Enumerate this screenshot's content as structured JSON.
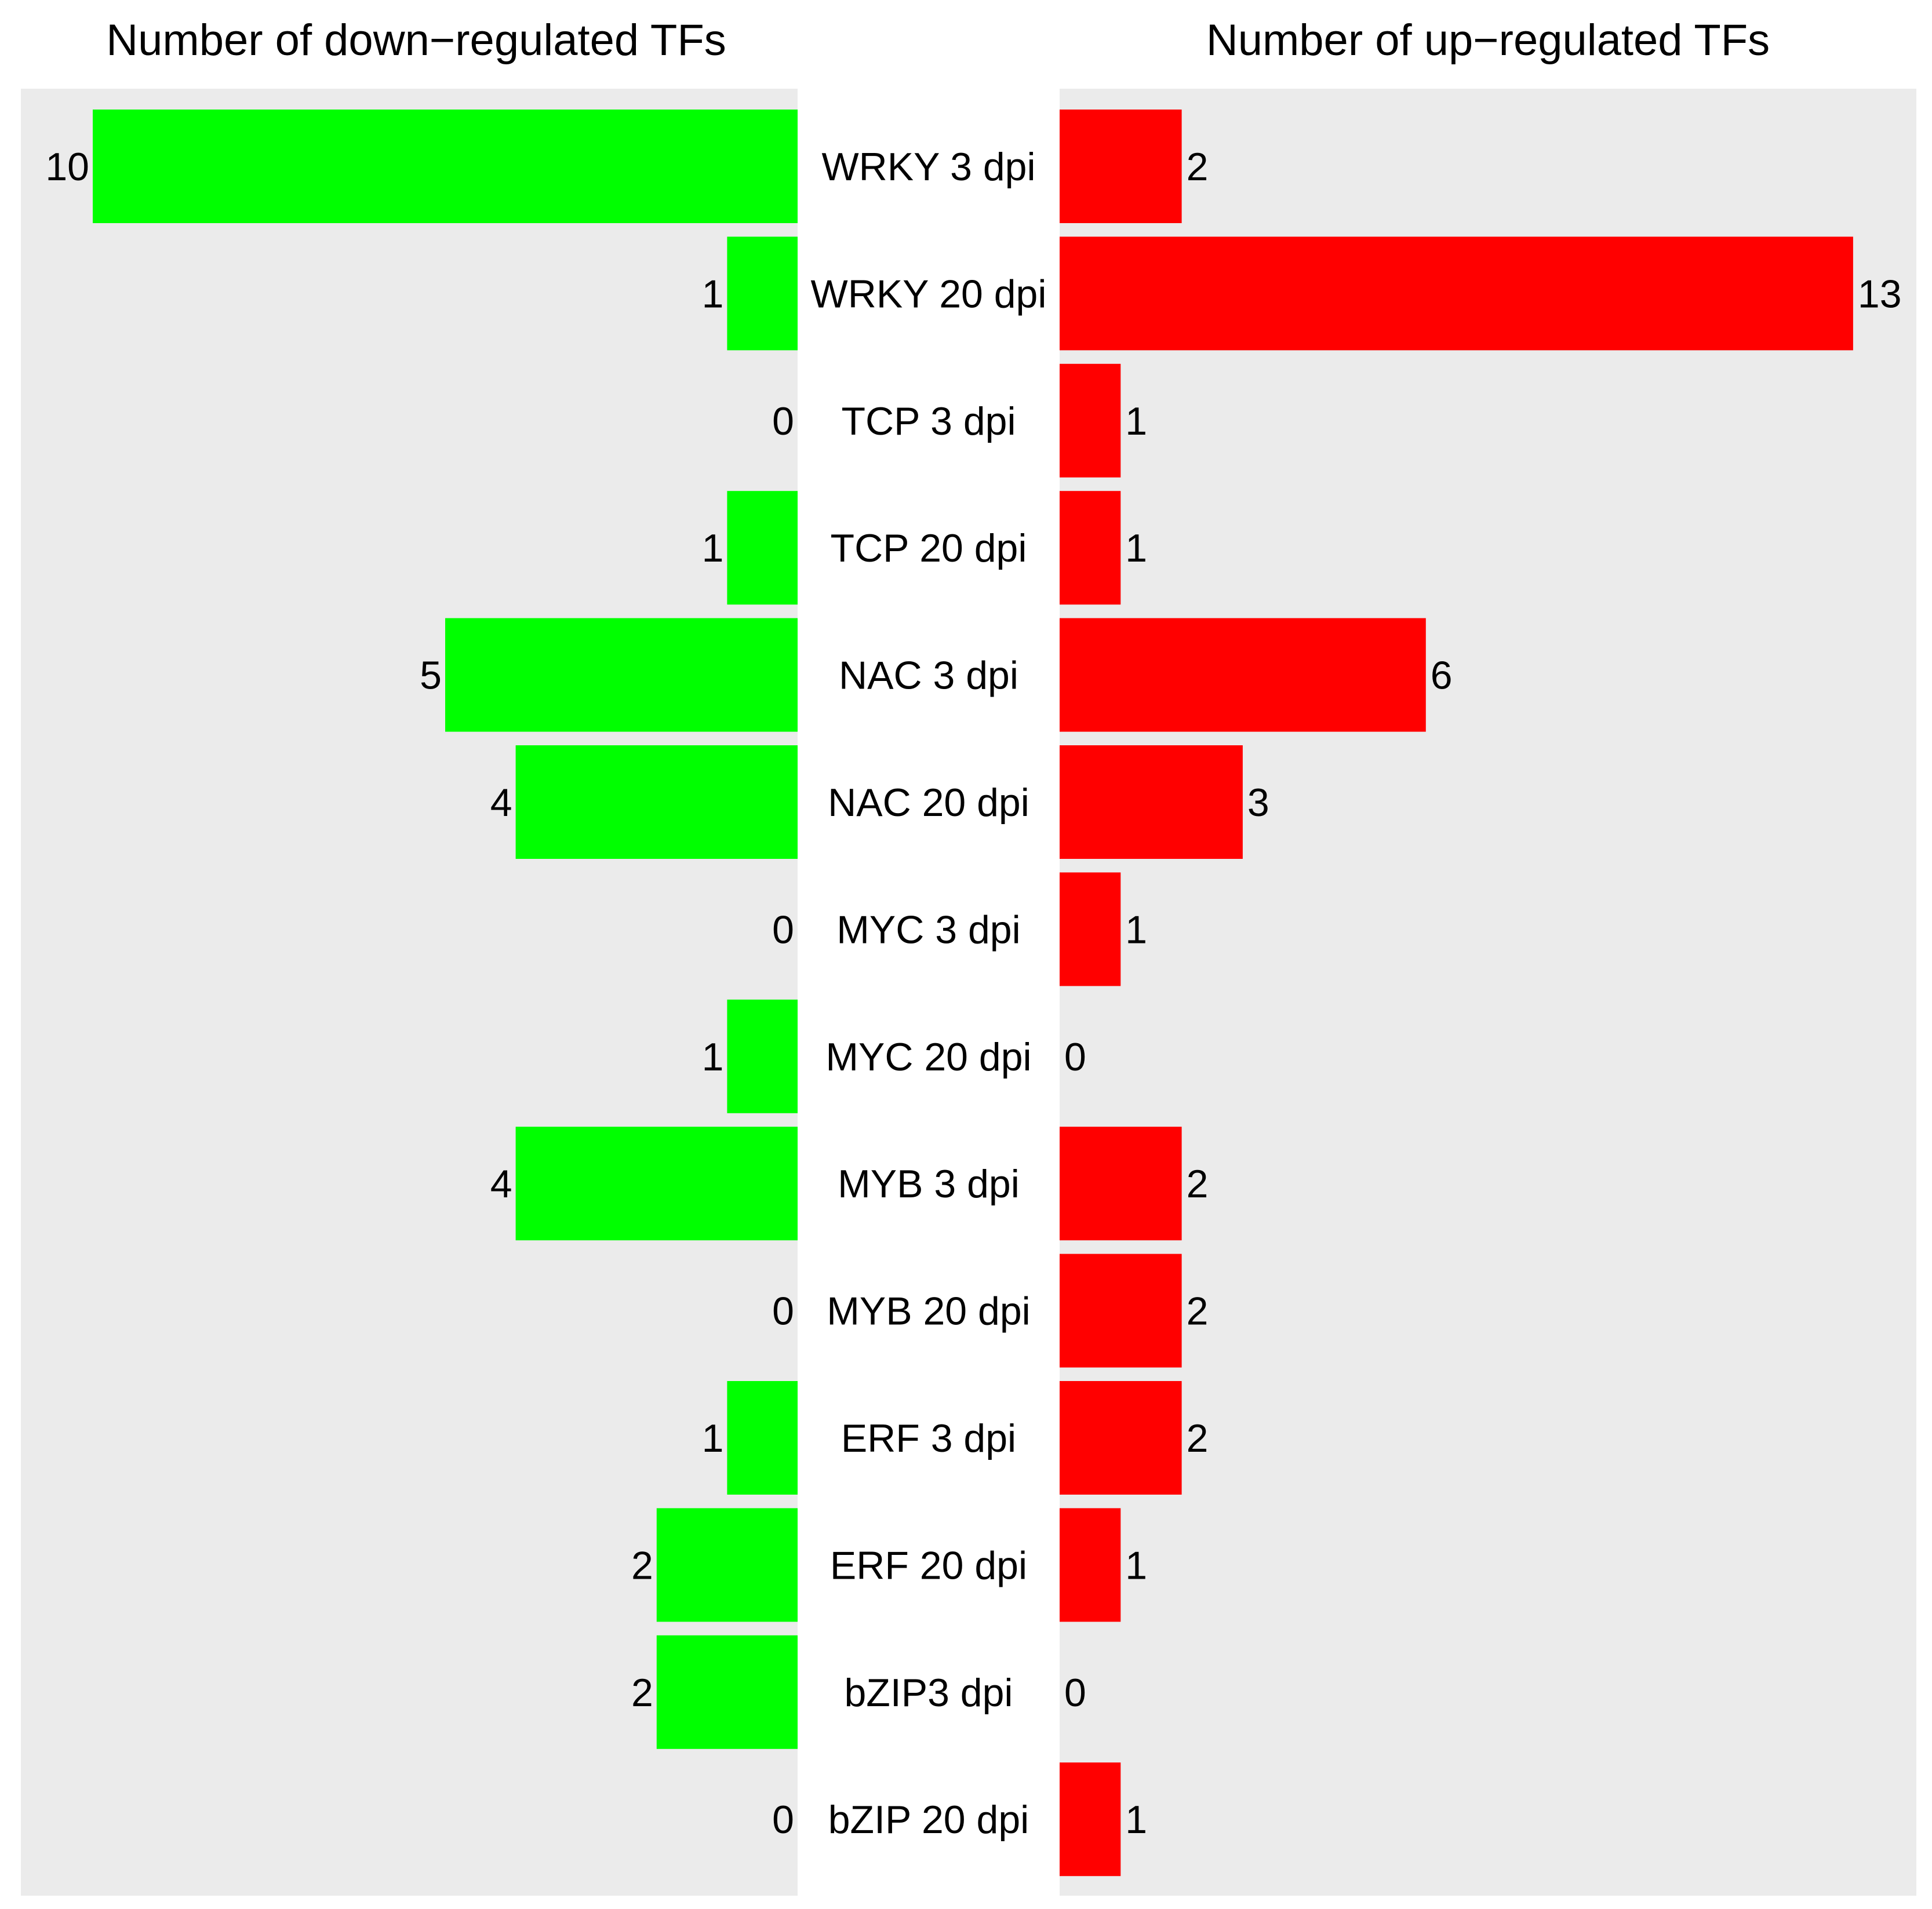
{
  "chart_data": {
    "type": "bar",
    "layout": "back-to-back horizontal",
    "categories": [
      "WRKY 3 dpi",
      "WRKY 20 dpi",
      "TCP 3 dpi",
      "TCP 20 dpi",
      "NAC 3 dpi",
      "NAC 20 dpi",
      "MYC 3 dpi",
      "MYC 20 dpi",
      "MYB 3 dpi",
      "MYB 20 dpi",
      "ERF 3 dpi",
      "ERF 20 dpi",
      "bZIP3 dpi",
      "bZIP 20 dpi"
    ],
    "left_panel": {
      "title": "Number of down−regulated TFs",
      "color": "#00ff00",
      "values": [
        10,
        1,
        0,
        1,
        5,
        4,
        0,
        1,
        4,
        0,
        1,
        2,
        2,
        0
      ]
    },
    "right_panel": {
      "title": "Number of up−regulated TFs",
      "color": "#ff0000",
      "values": [
        2,
        13,
        1,
        1,
        6,
        3,
        1,
        0,
        2,
        2,
        2,
        1,
        0,
        1
      ]
    },
    "panel_background": "#ebebeb",
    "grid": false,
    "legend": "none"
  }
}
